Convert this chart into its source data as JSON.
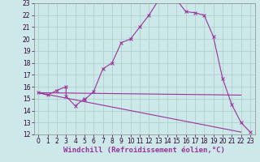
{
  "xlabel": "Windchill (Refroidissement éolien,°C)",
  "xlim": [
    -0.5,
    23.5
  ],
  "ylim": [
    12,
    23
  ],
  "yticks": [
    12,
    13,
    14,
    15,
    16,
    17,
    18,
    19,
    20,
    21,
    22,
    23
  ],
  "xticks": [
    0,
    1,
    2,
    3,
    4,
    5,
    6,
    7,
    8,
    9,
    10,
    11,
    12,
    13,
    14,
    15,
    16,
    17,
    18,
    19,
    20,
    21,
    22,
    23
  ],
  "bg_color": "#cce8e8",
  "grid_color": "#aacccc",
  "line_color": "#993399",
  "line_width": 0.8,
  "marker": "x",
  "marker_size": 3,
  "series1_x": [
    0,
    1,
    2,
    3,
    3,
    4,
    5,
    5,
    6,
    7,
    8,
    9,
    10,
    11,
    12,
    13,
    14,
    15,
    16,
    17,
    18,
    19,
    20,
    21,
    22,
    23
  ],
  "series1_y": [
    15.5,
    15.3,
    15.7,
    16.0,
    15.2,
    14.4,
    15.0,
    14.9,
    15.6,
    17.5,
    18.0,
    19.7,
    20.0,
    21.0,
    22.0,
    23.2,
    23.2,
    23.3,
    22.3,
    22.2,
    22.0,
    20.2,
    16.7,
    14.5,
    13.0,
    12.2
  ],
  "series2_x": [
    0,
    22
  ],
  "series2_y": [
    15.5,
    15.3
  ],
  "series3_x": [
    0,
    22
  ],
  "series3_y": [
    15.5,
    12.2
  ],
  "xlabel_color": "#993399",
  "xlabel_fontsize": 6.5,
  "tick_fontsize": 5.5,
  "tick_color": "#330033"
}
